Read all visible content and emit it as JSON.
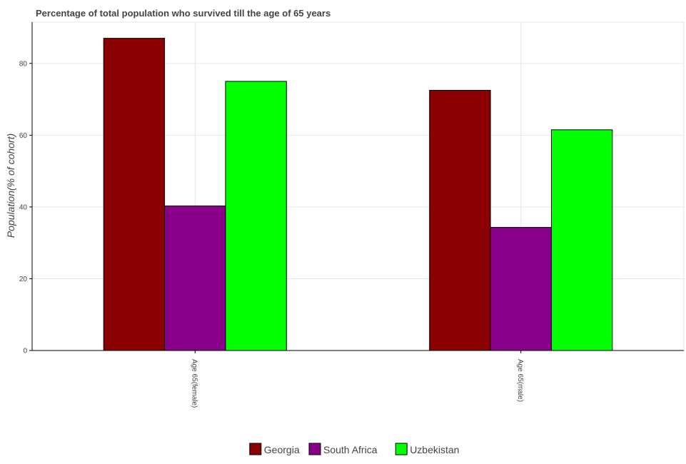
{
  "chart_data": {
    "type": "bar",
    "title": "Percentage of total population who survived till the age of 65 years",
    "xlabel": "",
    "ylabel": "Population(% of cohort)",
    "categories": [
      "Age 65(female)",
      "Age 65(male)"
    ],
    "series": [
      {
        "name": "Georgia",
        "color": "#8b0000",
        "values": [
          87,
          72.5
        ]
      },
      {
        "name": "South Africa",
        "color": "#8b008b",
        "values": [
          40.3,
          34.3
        ]
      },
      {
        "name": "Uzbekistan",
        "color": "#00ff00",
        "values": [
          75,
          61.5
        ]
      }
    ],
    "ylim": [
      0,
      91.5
    ],
    "yticks": [
      0,
      20,
      40,
      60,
      80
    ],
    "grid": true,
    "legend_position": "bottom-center"
  }
}
